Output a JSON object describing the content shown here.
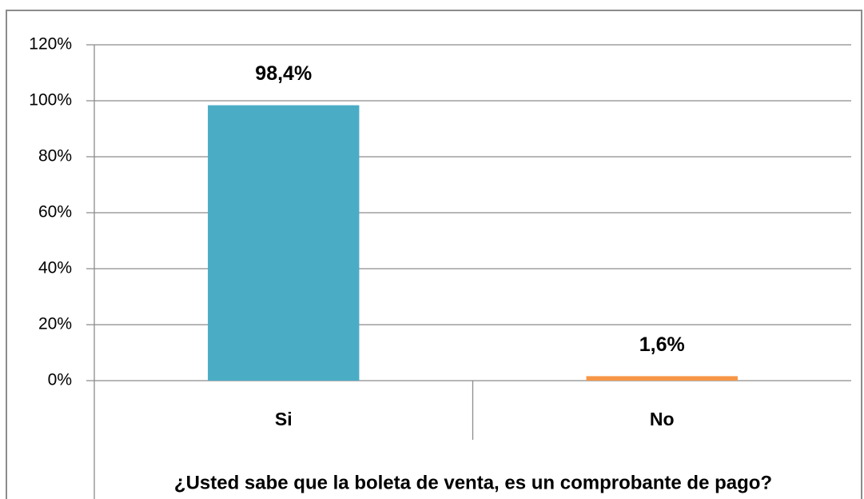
{
  "chart_data": {
    "type": "bar",
    "x_label": "¿Usted sabe que la boleta de venta, es un comprobante de pago?",
    "categories": [
      "Si",
      "No"
    ],
    "values": [
      98.4,
      1.6
    ],
    "value_labels": [
      "98,4%",
      "1,6%"
    ],
    "colors": [
      "#4BACC6",
      "#F79646"
    ],
    "ylim": [
      0,
      120
    ],
    "yticks": [
      {
        "value": 0,
        "label": "0%"
      },
      {
        "value": 20,
        "label": "20%"
      },
      {
        "value": 40,
        "label": "40%"
      },
      {
        "value": 60,
        "label": "60%"
      },
      {
        "value": 80,
        "label": "80%"
      },
      {
        "value": 100,
        "label": "100%"
      },
      {
        "value": 120,
        "label": "120%"
      }
    ],
    "grid": true
  }
}
